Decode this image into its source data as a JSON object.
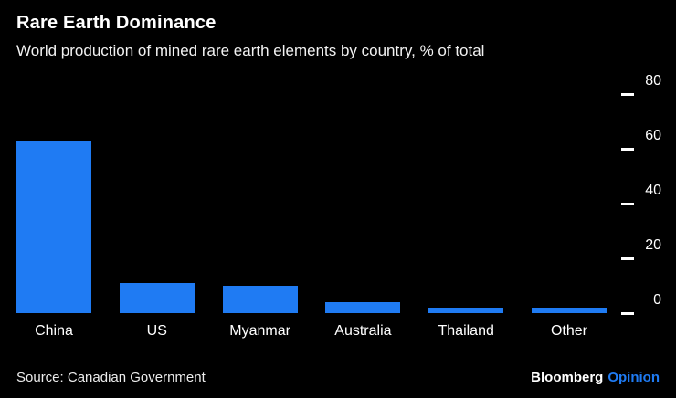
{
  "header": {
    "title": "Rare Earth Dominance",
    "subtitle": "World production of mined rare earth elements by country, % of total"
  },
  "chart_data": {
    "type": "bar",
    "categories": [
      "China",
      "US",
      "Myanmar",
      "Australia",
      "Thailand",
      "Other"
    ],
    "values": [
      63,
      11,
      10,
      4,
      2,
      2
    ],
    "title": "Rare Earth Dominance",
    "subtitle": "World production of mined rare earth elements by country, % of total",
    "xlabel": "",
    "ylabel": "% of total",
    "ylim": [
      0,
      80
    ],
    "yticks": [
      0,
      20,
      40,
      60,
      80
    ],
    "grid": false,
    "legend": false,
    "axis_side": "right",
    "bar_color": "#1f7bf3"
  },
  "footer": {
    "source": "Source: Canadian Government",
    "brand": "Bloomberg",
    "brand_suffix": "Opinion"
  },
  "colors": {
    "background": "#000000",
    "bar": "#1f7bf3",
    "text": "#ffffff",
    "accent_blue": "#1f7bf3"
  }
}
